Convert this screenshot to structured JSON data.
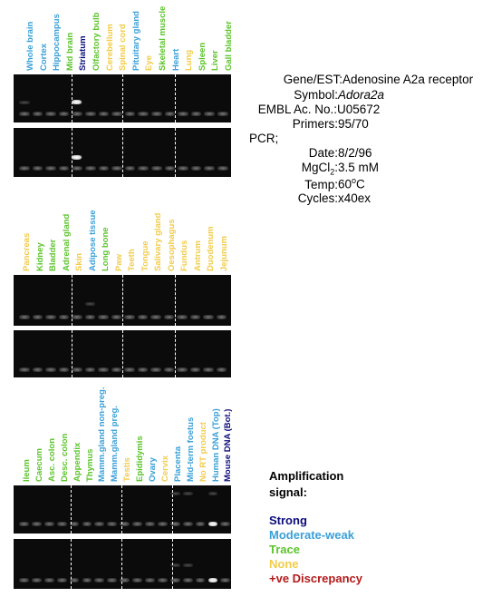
{
  "colors": {
    "strong": "#0c0c7a",
    "moderate": "#3aa0d8",
    "trace": "#5cc42c",
    "none": "#f2cc4a",
    "discrepancy": "#b31a1a"
  },
  "panel1": {
    "labels": [
      {
        "text": "Whole brain",
        "cls": "moderate"
      },
      {
        "text": "Cortex",
        "cls": "moderate"
      },
      {
        "text": "Hippocampus",
        "cls": "moderate"
      },
      {
        "text": "Mid brain",
        "cls": "trace"
      },
      {
        "text": "Striatum",
        "cls": "strong"
      },
      {
        "text": "Olfactory bulb",
        "cls": "trace"
      },
      {
        "text": "Cerebellum",
        "cls": "none"
      },
      {
        "text": "Spinal cord",
        "cls": "none"
      },
      {
        "text": "Pituitary gland",
        "cls": "moderate"
      },
      {
        "text": "Eye",
        "cls": "none"
      },
      {
        "text": "Skeletal muscle",
        "cls": "trace"
      },
      {
        "text": "Heart",
        "cls": "moderate"
      },
      {
        "text": "Lung",
        "cls": "none"
      },
      {
        "text": "Spleen",
        "cls": "trace"
      },
      {
        "text": "Liver",
        "cls": "trace"
      },
      {
        "text": "Gall bladder",
        "cls": "trace"
      }
    ]
  },
  "panel2": {
    "labels": [
      {
        "text": "Pancreas",
        "cls": "none"
      },
      {
        "text": "Kidney",
        "cls": "trace"
      },
      {
        "text": "Bladder",
        "cls": "trace"
      },
      {
        "text": "Adrenal gland",
        "cls": "trace"
      },
      {
        "text": "Skin",
        "cls": "none"
      },
      {
        "text": "Adipose tissue",
        "cls": "moderate"
      },
      {
        "text": "Long bone",
        "cls": "trace"
      },
      {
        "text": "Paw",
        "cls": "none"
      },
      {
        "text": "Teeth",
        "cls": "none"
      },
      {
        "text": "Tongue",
        "cls": "none"
      },
      {
        "text": "Salivary gland",
        "cls": "none"
      },
      {
        "text": "Oesophagus",
        "cls": "none"
      },
      {
        "text": "Fundus",
        "cls": "none"
      },
      {
        "text": "Antrum",
        "cls": "none"
      },
      {
        "text": "Duodenum",
        "cls": "none"
      },
      {
        "text": "Jejunum",
        "cls": "none"
      }
    ]
  },
  "panel3": {
    "labels": [
      {
        "text": "Ileum",
        "cls": "trace"
      },
      {
        "text": "Caecum",
        "cls": "trace"
      },
      {
        "text": "Asc. colon",
        "cls": "trace"
      },
      {
        "text": "Desc. colon",
        "cls": "trace"
      },
      {
        "text": "Appendix",
        "cls": "trace"
      },
      {
        "text": "Thymus",
        "cls": "trace"
      },
      {
        "text": "Mamm.gland non-preg.",
        "cls": "moderate"
      },
      {
        "text": "Mamm.gland preg.",
        "cls": "moderate"
      },
      {
        "text": "Testis",
        "cls": "none"
      },
      {
        "text": "Epididymis",
        "cls": "trace"
      },
      {
        "text": "Ovary",
        "cls": "moderate"
      },
      {
        "text": "Cervix",
        "cls": "none"
      },
      {
        "text": "Placenta",
        "cls": "moderate"
      },
      {
        "text": "Mid-term foetus",
        "cls": "moderate"
      },
      {
        "text": "No RT product",
        "cls": "none"
      },
      {
        "text": "Human DNA (Top)",
        "cls": "moderate"
      },
      {
        "text": "Mouse DNA (Bot.)",
        "cls": "strong"
      }
    ]
  },
  "info": {
    "gene_key": "Gene/EST:",
    "gene_val": "Adenosine A2a receptor",
    "symbol_key": "Symbol:",
    "symbol_val": "Adora2a",
    "embl_key": "EMBL Ac. No.:",
    "embl_val": "U05672",
    "primers_key": "Primers:",
    "primers_val": "95/70",
    "pcr_key": "PCR;",
    "date_key": "Date:",
    "date_val": "8/2/96",
    "mgcl_key_a": "MgCl",
    "mgcl_key_sub": "2",
    "mgcl_key_b": ":",
    "mgcl_val": "3.5 mM",
    "temp_key": "Temp:",
    "temp_val_a": "60",
    "temp_val_sup": "o",
    "temp_val_b": "C",
    "cycles_key": "Cycles:",
    "cycles_val": "x40ex"
  },
  "legend": {
    "title_line1": "Amplification",
    "title_line2": "signal:",
    "strong": "Strong",
    "moderate": "Moderate-weak",
    "trace": "Trace",
    "none": "None",
    "discrepancy": "+ve Discrepancy"
  }
}
